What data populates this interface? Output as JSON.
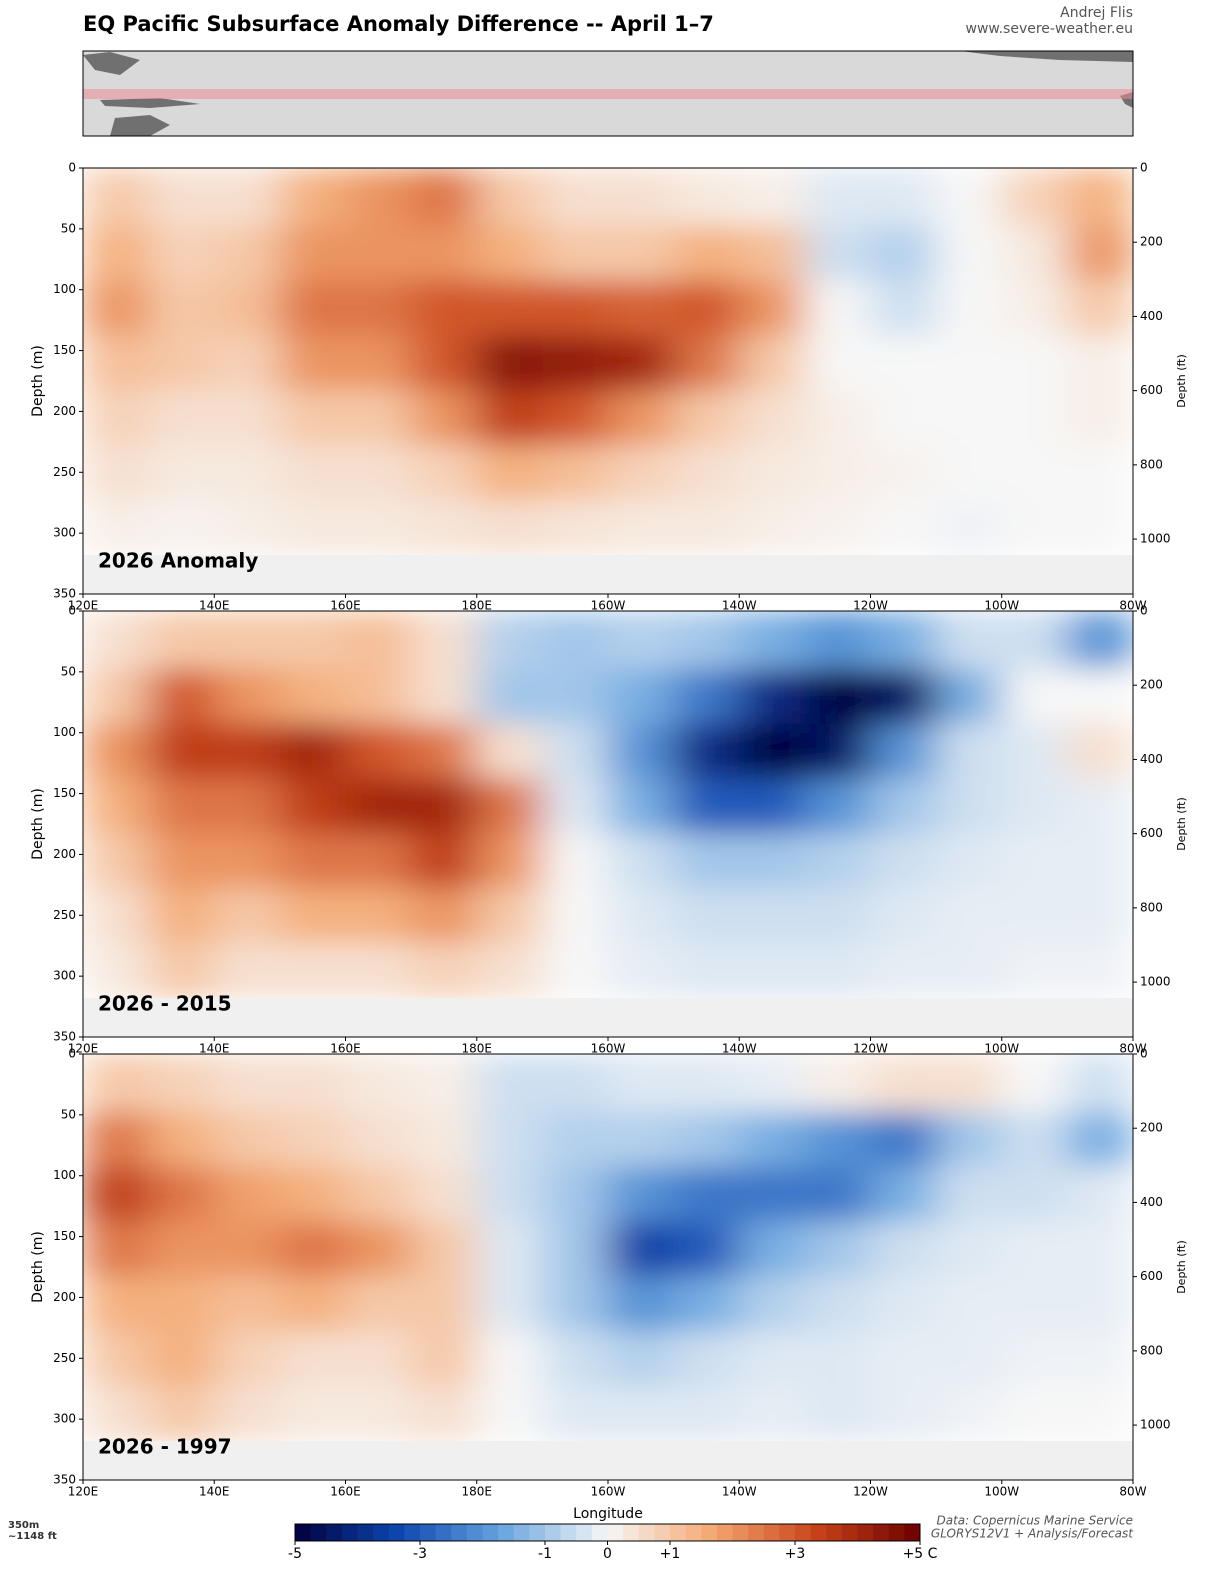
{
  "header": {
    "title": "EQ Pacific Subsurface Anomaly Difference -- April 1–7",
    "author": "Andrej Flis",
    "website": "www.severe-weather.eu"
  },
  "chart_data": [
    {
      "type": "heatmap",
      "label": "2026 Anomaly",
      "ylabel": "Depth (m)",
      "y2label": "Depth (ft)",
      "x": [
        125,
        135,
        145,
        155,
        165,
        175,
        185,
        195,
        205,
        215,
        225,
        235,
        245,
        255,
        265,
        275
      ],
      "y": [
        25,
        70,
        115,
        160,
        205,
        250,
        295
      ],
      "values": [
        [
          1,
          0.5,
          0.5,
          1.5,
          2,
          2.5,
          1,
          0.5,
          0.5,
          0.3,
          0.2,
          -0.3,
          -0.3,
          0,
          0.8,
          1.5
        ],
        [
          1.5,
          0.8,
          1,
          2,
          2,
          2,
          1.5,
          1,
          1,
          1.5,
          1.2,
          -0.5,
          -0.8,
          0,
          0.3,
          2
        ],
        [
          2,
          1,
          1.2,
          2.5,
          2.5,
          3,
          3,
          3,
          2.8,
          3,
          2,
          0,
          -0.5,
          0,
          0.2,
          1
        ],
        [
          1.2,
          1,
          0.8,
          2,
          2,
          3,
          4.5,
          4.3,
          4,
          2.5,
          1,
          0,
          0,
          0,
          0,
          0.2
        ],
        [
          0.8,
          0.5,
          0.5,
          1,
          1,
          2,
          3.5,
          3,
          2,
          1,
          0.5,
          0.2,
          0,
          0,
          0,
          0.2
        ],
        [
          0.5,
          0.3,
          0.3,
          0.5,
          0.5,
          0.8,
          1.5,
          1.2,
          0.8,
          0.5,
          0.3,
          0.2,
          0.1,
          0,
          0,
          0
        ],
        [
          0.2,
          0.1,
          0.2,
          0.3,
          0.3,
          0.4,
          0.5,
          0.4,
          0.3,
          0.3,
          0.2,
          0.1,
          0,
          -0.1,
          0,
          0
        ]
      ],
      "floor_depth": 318,
      "xlim": [
        120,
        280
      ],
      "ylim": [
        0,
        350
      ],
      "y2lim": [
        0,
        1148
      ],
      "xticks": [
        {
          "value": 120,
          "label": "120E"
        },
        {
          "value": 140,
          "label": "140E"
        },
        {
          "value": 160,
          "label": "160E"
        },
        {
          "value": 180,
          "label": "180E"
        },
        {
          "value": 200,
          "label": "160W"
        },
        {
          "value": 220,
          "label": "140W"
        },
        {
          "value": 240,
          "label": "120W"
        },
        {
          "value": 260,
          "label": "100W"
        },
        {
          "value": 280,
          "label": "80W"
        }
      ],
      "yticks": [
        0,
        50,
        100,
        150,
        200,
        250,
        300,
        350
      ],
      "y2ticks": [
        0,
        200,
        400,
        600,
        800,
        1000
      ]
    },
    {
      "type": "heatmap",
      "label": "2026 - 2015",
      "ylabel": "Depth (m)",
      "y2label": "Depth (ft)",
      "x": [
        125,
        135,
        145,
        155,
        165,
        175,
        185,
        195,
        205,
        215,
        225,
        235,
        245,
        255,
        265,
        275
      ],
      "y": [
        25,
        70,
        115,
        160,
        205,
        250,
        295
      ],
      "values": [
        [
          0.5,
          1,
          1,
          1,
          1.2,
          0.5,
          -0.8,
          -1,
          -0.8,
          -1,
          -1.5,
          -2,
          -1.5,
          -0.5,
          -0.5,
          -2
        ],
        [
          1,
          3,
          2,
          1.5,
          1.2,
          0.5,
          -1,
          -1,
          -1.5,
          -2.5,
          -4,
          -5,
          -4.5,
          -1.5,
          0,
          0
        ],
        [
          2,
          3.5,
          3.5,
          4,
          3,
          2.5,
          0.5,
          -0.5,
          -2,
          -4,
          -5,
          -4.5,
          -2,
          -0.5,
          -0.3,
          0.5
        ],
        [
          1.5,
          2.5,
          2.5,
          3.5,
          4,
          4,
          2.5,
          -0.3,
          -1.5,
          -3,
          -3,
          -2,
          -1,
          -0.5,
          -0.3,
          -0.2
        ],
        [
          1,
          2,
          2,
          2.5,
          2.5,
          3.5,
          2,
          0,
          -0.5,
          -1,
          -1,
          -0.8,
          -0.5,
          -0.3,
          -0.2,
          -0.2
        ],
        [
          0.5,
          1.5,
          1,
          1.5,
          1.5,
          2,
          1,
          0,
          -0.3,
          -0.5,
          -0.5,
          -0.5,
          -0.3,
          -0.2,
          -0.2,
          -0.2
        ],
        [
          0.3,
          1,
          0.5,
          0.5,
          0.5,
          0.8,
          0.5,
          0,
          -0.2,
          -0.3,
          -0.3,
          -0.3,
          -0.2,
          -0.2,
          -0.1,
          -0.1
        ]
      ],
      "floor_depth": 318,
      "xlim": [
        120,
        280
      ],
      "ylim": [
        0,
        350
      ],
      "y2lim": [
        0,
        1148
      ],
      "xticks": [
        {
          "value": 120,
          "label": "120E"
        },
        {
          "value": 140,
          "label": "140E"
        },
        {
          "value": 160,
          "label": "160E"
        },
        {
          "value": 180,
          "label": "180E"
        },
        {
          "value": 200,
          "label": "160W"
        },
        {
          "value": 220,
          "label": "140W"
        },
        {
          "value": 240,
          "label": "120W"
        },
        {
          "value": 260,
          "label": "100W"
        },
        {
          "value": 280,
          "label": "80W"
        }
      ],
      "yticks": [
        0,
        50,
        100,
        150,
        200,
        250,
        300,
        350
      ],
      "y2ticks": [
        0,
        200,
        400,
        600,
        800,
        1000
      ]
    },
    {
      "type": "heatmap",
      "label": "2026 - 1997",
      "ylabel": "Depth (m)",
      "y2label": "Depth (ft)",
      "xlabel": "Longitude",
      "x": [
        125,
        135,
        145,
        155,
        165,
        175,
        185,
        195,
        205,
        215,
        225,
        235,
        245,
        255,
        265,
        275
      ],
      "y": [
        25,
        70,
        115,
        160,
        205,
        250,
        295
      ],
      "values": [
        [
          1,
          0.8,
          0.5,
          0.5,
          0.3,
          0.2,
          -0.5,
          -0.5,
          -0.3,
          -0.3,
          -0.2,
          0.2,
          0.5,
          0.5,
          0,
          -0.5
        ],
        [
          2.5,
          1.5,
          1,
          0.8,
          0.5,
          0.3,
          -0.5,
          -0.8,
          -0.8,
          -1,
          -1.5,
          -2,
          -2.5,
          -1,
          -0.5,
          -1.5
        ],
        [
          3.5,
          2.5,
          1.8,
          1.5,
          1,
          0.5,
          -0.5,
          -1,
          -2,
          -2.5,
          -2.5,
          -2.5,
          -1.5,
          -0.5,
          -0.5,
          -0.3
        ],
        [
          2.5,
          2,
          2,
          2.5,
          2,
          1,
          -0.3,
          -1,
          -3.5,
          -3,
          -1.5,
          -1,
          -0.5,
          -0.3,
          -0.2,
          -0.2
        ],
        [
          1.5,
          1.5,
          1.2,
          1.5,
          1,
          1,
          -0.3,
          -1,
          -2,
          -1.5,
          -0.8,
          -0.5,
          -0.3,
          -0.2,
          -0.2,
          -0.2
        ],
        [
          1,
          1.5,
          0.8,
          0.5,
          0.5,
          1,
          0,
          -0.5,
          -0.8,
          -0.5,
          -0.3,
          -0.3,
          -0.2,
          -0.2,
          -0.1,
          -0.1
        ],
        [
          0.5,
          1,
          0.5,
          0.3,
          0.3,
          0.5,
          0,
          -0.3,
          -0.3,
          -0.3,
          -0.2,
          -0.3,
          -0.2,
          -0.1,
          0,
          0
        ]
      ],
      "floor_depth": 318,
      "xlim": [
        120,
        280
      ],
      "ylim": [
        0,
        350
      ],
      "y2lim": [
        0,
        1148
      ],
      "xticks": [
        {
          "value": 120,
          "label": "120E"
        },
        {
          "value": 140,
          "label": "140E"
        },
        {
          "value": 160,
          "label": "160E"
        },
        {
          "value": 180,
          "label": "180E"
        },
        {
          "value": 200,
          "label": "160W"
        },
        {
          "value": 220,
          "label": "140W"
        },
        {
          "value": 240,
          "label": "120W"
        },
        {
          "value": 260,
          "label": "100W"
        },
        {
          "value": 280,
          "label": "80W"
        }
      ],
      "yticks": [
        0,
        50,
        100,
        150,
        200,
        250,
        300,
        350
      ],
      "y2ticks": [
        0,
        200,
        400,
        600,
        800,
        1000
      ]
    }
  ],
  "colorbar": {
    "lim": [
      -5,
      5
    ],
    "colors": [
      "#00003f",
      "#0d47b0",
      "#6aa6e0",
      "#f7f7f7",
      "#f4a872",
      "#c8431a",
      "#6b0000"
    ],
    "ticks": [
      -5,
      -3,
      -1,
      0,
      {
        "value": 1,
        "label": "+1"
      },
      {
        "value": 3,
        "label": "+3"
      },
      {
        "value": 5,
        "label": "+5 C"
      }
    ]
  },
  "footer": {
    "depth_m": "350m",
    "depth_ft": "~1148 ft",
    "source": "Data: Copernicus Marine Service",
    "product": "GLORYS12V1 + Analysis/Forecast"
  }
}
